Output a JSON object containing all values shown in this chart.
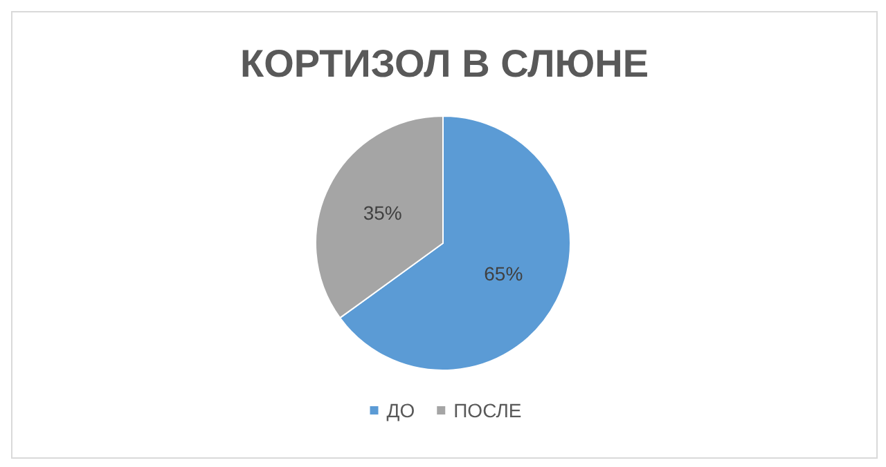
{
  "chart_data": {
    "type": "pie",
    "title": "КОРТИЗОЛ В СЛЮНЕ",
    "categories": [
      "ДО",
      "ПОСЛЕ"
    ],
    "values": [
      65,
      35
    ],
    "colors": [
      "#5b9bd5",
      "#a5a5a5"
    ],
    "value_labels": [
      "65%",
      "35%"
    ],
    "legend": "bottom"
  }
}
